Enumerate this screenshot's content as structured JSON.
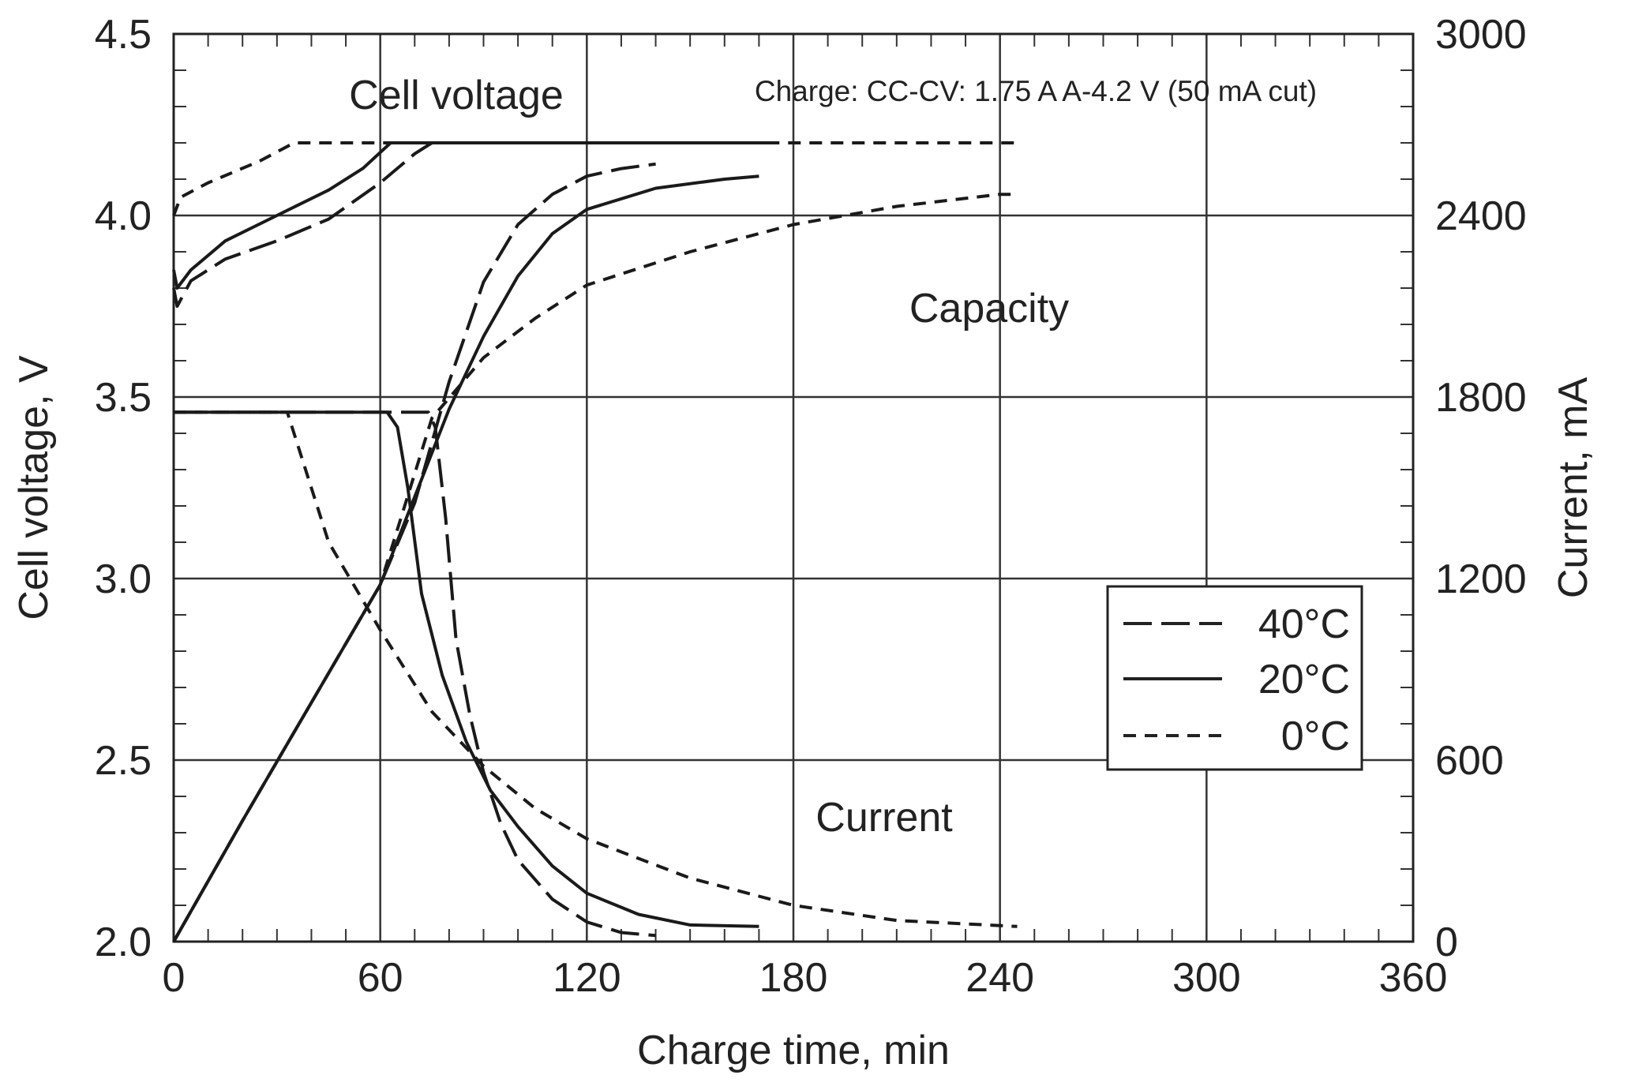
{
  "chart_data": {
    "type": "line",
    "xlabel": "Charge time, min",
    "ylabel": "Cell voltage, V",
    "y2label": "Current, mA",
    "xlim": [
      0,
      360
    ],
    "ylim": [
      2.0,
      4.5
    ],
    "y2lim": [
      0,
      3000
    ],
    "xticks": [
      "0",
      "60",
      "120",
      "180",
      "240",
      "300",
      "360"
    ],
    "yticks": [
      "2.0",
      "2.5",
      "3.0",
      "3.5",
      "4.0",
      "4.5"
    ],
    "y2ticks": [
      "0",
      "600",
      "1200",
      "1800",
      "2400",
      "3000"
    ],
    "grid": true,
    "legend_position": "lower-right",
    "annotations": {
      "cell_voltage": "Cell voltage",
      "capacity": "Capacity",
      "current": "Current",
      "conditions": "Charge: CC-CV: 1.75 A A-4.2 V (50 mA cut)"
    },
    "legend": [
      {
        "label": "40°C",
        "dash": "long-dash"
      },
      {
        "label": "20°C",
        "dash": "solid"
      },
      {
        "label": "0°C",
        "dash": "short-dash"
      }
    ],
    "series": [
      {
        "temp": "40°C",
        "quantity": "Cell voltage",
        "axis": "left",
        "dash": "long-dash",
        "x": [
          0,
          1,
          5,
          15,
          30,
          45,
          60,
          70,
          75,
          100,
          120,
          140
        ],
        "y": [
          3.8,
          3.75,
          3.82,
          3.88,
          3.93,
          3.99,
          4.09,
          4.17,
          4.2,
          4.2,
          4.2,
          4.2
        ]
      },
      {
        "temp": "20°C",
        "quantity": "Cell voltage",
        "axis": "left",
        "dash": "solid",
        "x": [
          0,
          1,
          5,
          15,
          30,
          45,
          55,
          63,
          70,
          100,
          140,
          175
        ],
        "y": [
          3.85,
          3.8,
          3.85,
          3.93,
          4.0,
          4.07,
          4.13,
          4.2,
          4.2,
          4.2,
          4.2,
          4.2
        ]
      },
      {
        "temp": "0°C",
        "quantity": "Cell voltage",
        "axis": "left",
        "dash": "short-dash",
        "x": [
          0,
          2,
          10,
          25,
          35,
          40,
          60,
          120,
          180,
          245
        ],
        "y": [
          4.0,
          4.05,
          4.09,
          4.15,
          4.2,
          4.2,
          4.2,
          4.2,
          4.2,
          4.2
        ]
      },
      {
        "temp": "40°C",
        "quantity": "Capacity",
        "axis": "right",
        "dash": "long-dash",
        "x": [
          0,
          20,
          40,
          60,
          70,
          80,
          90,
          100,
          110,
          120,
          130,
          140
        ],
        "y": [
          0,
          400,
          790,
          1180,
          1450,
          1850,
          2180,
          2370,
          2470,
          2530,
          2555,
          2570
        ]
      },
      {
        "temp": "20°C",
        "quantity": "Capacity",
        "axis": "right",
        "dash": "solid",
        "x": [
          0,
          20,
          40,
          60,
          70,
          80,
          90,
          100,
          110,
          120,
          140,
          160,
          170
        ],
        "y": [
          0,
          400,
          790,
          1180,
          1470,
          1760,
          2000,
          2200,
          2340,
          2420,
          2490,
          2520,
          2530
        ]
      },
      {
        "temp": "0°C",
        "quantity": "Capacity",
        "axis": "right",
        "dash": "short-dash",
        "x": [
          0,
          20,
          40,
          60,
          75,
          90,
          105,
          120,
          150,
          180,
          210,
          240,
          245
        ],
        "y": [
          0,
          400,
          790,
          1180,
          1730,
          1930,
          2060,
          2170,
          2280,
          2370,
          2430,
          2470,
          2470
        ]
      },
      {
        "temp": "40°C",
        "quantity": "Current",
        "axis": "right",
        "dash": "long-dash",
        "x": [
          0,
          74,
          76,
          79,
          82,
          86,
          90,
          95,
          100,
          110,
          120,
          130,
          140
        ],
        "y": [
          1750,
          1750,
          1700,
          1400,
          1000,
          750,
          560,
          390,
          270,
          140,
          65,
          30,
          20
        ]
      },
      {
        "temp": "20°C",
        "quantity": "Current",
        "axis": "right",
        "dash": "solid",
        "x": [
          0,
          62,
          65,
          68,
          72,
          78,
          85,
          92,
          100,
          110,
          120,
          135,
          150,
          170
        ],
        "y": [
          1750,
          1750,
          1700,
          1500,
          1150,
          880,
          660,
          500,
          380,
          250,
          160,
          90,
          55,
          50
        ]
      },
      {
        "temp": "0°C",
        "quantity": "Current",
        "axis": "right",
        "dash": "short-dash",
        "x": [
          0,
          33,
          45,
          60,
          75,
          90,
          105,
          120,
          150,
          180,
          210,
          245
        ],
        "y": [
          1750,
          1750,
          1320,
          1030,
          760,
          580,
          440,
          340,
          210,
          120,
          70,
          50
        ]
      }
    ]
  }
}
